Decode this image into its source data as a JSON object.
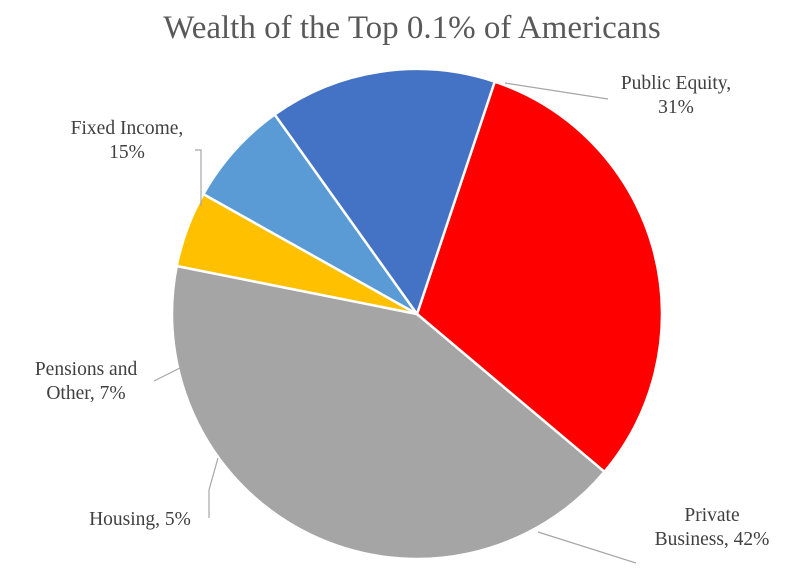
{
  "chart_data": {
    "type": "pie",
    "title": "Wealth of the Top 0.1% of Americans",
    "start_category": "Public Equity",
    "direction": "clockwise",
    "slices": [
      {
        "name": "Public Equity",
        "value": 31,
        "color": "#ff0000",
        "label_lines": [
          "Public Equity,",
          "31%"
        ]
      },
      {
        "name": "Private Business",
        "value": 42,
        "color": "#a5a5a5",
        "label_lines": [
          "Private",
          "Business, 42%"
        ]
      },
      {
        "name": "Housing",
        "value": 5,
        "color": "#ffc000",
        "label_lines": [
          "Housing, 5%"
        ]
      },
      {
        "name": "Pensions and Other",
        "value": 7,
        "color": "#5b9bd5",
        "label_lines": [
          "Pensions and",
          "Other, 7%"
        ]
      },
      {
        "name": "Fixed Income",
        "value": 15,
        "color": "#4472c4",
        "label_lines": [
          "Fixed Income,",
          "15%"
        ]
      }
    ],
    "legend": "none",
    "data_labels": "outside with leader lines"
  }
}
